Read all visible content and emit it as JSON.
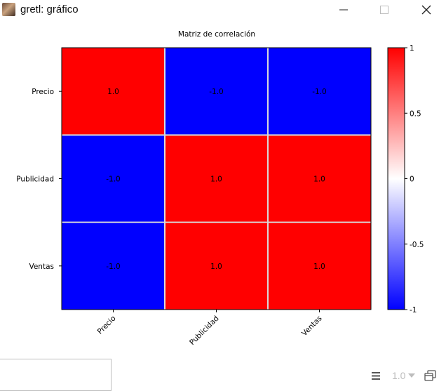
{
  "window": {
    "title": "gretl: gráfico",
    "app_icon": "gretl-portrait-icon",
    "controls": [
      "minimize-icon",
      "maximize-icon",
      "close-icon"
    ]
  },
  "chart_data": {
    "type": "heatmap",
    "title": "Matriz de correlación",
    "rows": [
      "Precio",
      "Publicidad",
      "Ventas"
    ],
    "columns": [
      "Precio",
      "Publicidad",
      "Ventas"
    ],
    "values": [
      [
        1.0,
        -1.0,
        -1.0
      ],
      [
        -1.0,
        1.0,
        1.0
      ],
      [
        -1.0,
        1.0,
        1.0
      ]
    ],
    "cell_labels": [
      [
        "1.0",
        "-1.0",
        "-1.0"
      ],
      [
        "-1.0",
        "1.0",
        "1.0"
      ],
      [
        "-1.0",
        "1.0",
        "1.0"
      ]
    ],
    "colorbar": {
      "range": [
        -1,
        1
      ],
      "ticks": [
        1,
        0.5,
        0,
        -0.5,
        -1
      ],
      "tick_labels": [
        "1",
        "0.5",
        "0",
        "-0.5",
        "-1"
      ],
      "colors": {
        "low": "#0000ff",
        "mid": "#ffffff",
        "high": "#ff0000"
      }
    },
    "grid_color": "#d9d9d9"
  },
  "toolbar": {
    "menu_icon": "hamburger-menu-icon",
    "zoom_value": "1.0",
    "zoom_arrow_icon": "chevron-down-icon",
    "window_icon": "window-stack-icon"
  }
}
